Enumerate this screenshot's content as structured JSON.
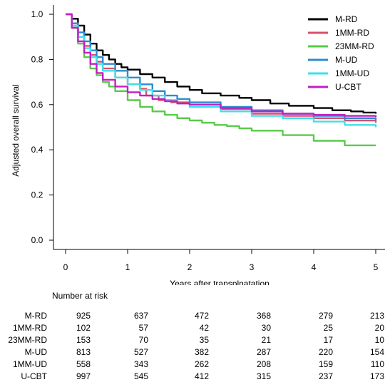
{
  "chart_data": {
    "type": "line",
    "step": true,
    "xlabel": "Years after transplnatation",
    "ylabel": "Adjusted overall survival",
    "xlim": [
      0,
      5
    ],
    "ylim": [
      0,
      1
    ],
    "xticks": [
      "0",
      "1",
      "2",
      "3",
      "4",
      "5"
    ],
    "yticks": [
      "0.0",
      "0.2",
      "0.4",
      "0.6",
      "0.8",
      "1.0"
    ],
    "legend_position": "top-right",
    "grid": false,
    "series": [
      {
        "name": "M-RD",
        "color": "#000000",
        "x": [
          0,
          0.1,
          0.2,
          0.3,
          0.4,
          0.5,
          0.6,
          0.7,
          0.8,
          0.9,
          1.0,
          1.2,
          1.4,
          1.6,
          1.8,
          2.0,
          2.2,
          2.5,
          2.8,
          3.0,
          3.3,
          3.6,
          4.0,
          4.3,
          4.6,
          4.8,
          5.0
        ],
        "y": [
          1.0,
          0.98,
          0.95,
          0.91,
          0.87,
          0.84,
          0.82,
          0.8,
          0.78,
          0.765,
          0.755,
          0.735,
          0.72,
          0.7,
          0.68,
          0.665,
          0.65,
          0.64,
          0.63,
          0.62,
          0.605,
          0.595,
          0.585,
          0.575,
          0.57,
          0.565,
          0.56
        ]
      },
      {
        "name": "1MM-RD",
        "color": "#d94f6b",
        "x": [
          0,
          0.1,
          0.2,
          0.3,
          0.4,
          0.5,
          0.6,
          0.8,
          1.0,
          1.2,
          1.3,
          1.5,
          1.7,
          2.0,
          2.5,
          3.0,
          3.5,
          4.0,
          4.5,
          5.0
        ],
        "y": [
          1.0,
          0.95,
          0.9,
          0.86,
          0.82,
          0.79,
          0.76,
          0.72,
          0.69,
          0.67,
          0.64,
          0.62,
          0.61,
          0.6,
          0.58,
          0.56,
          0.55,
          0.54,
          0.53,
          0.52
        ]
      },
      {
        "name": "23MM-RD",
        "color": "#5ac94a",
        "x": [
          0,
          0.1,
          0.2,
          0.3,
          0.4,
          0.5,
          0.6,
          0.7,
          0.8,
          1.0,
          1.2,
          1.4,
          1.6,
          1.8,
          2.0,
          2.2,
          2.4,
          2.6,
          2.8,
          3.0,
          3.5,
          4.0,
          4.5,
          5.0
        ],
        "y": [
          1.0,
          0.94,
          0.87,
          0.81,
          0.76,
          0.73,
          0.7,
          0.68,
          0.66,
          0.62,
          0.59,
          0.57,
          0.555,
          0.54,
          0.53,
          0.52,
          0.51,
          0.505,
          0.495,
          0.485,
          0.465,
          0.44,
          0.42,
          0.42
        ]
      },
      {
        "name": "M-UD",
        "color": "#2e8bd0",
        "x": [
          0,
          0.1,
          0.2,
          0.3,
          0.4,
          0.5,
          0.6,
          0.8,
          1.0,
          1.2,
          1.4,
          1.6,
          1.8,
          2.0,
          2.5,
          3.0,
          3.5,
          4.0,
          4.5,
          5.0
        ],
        "y": [
          1.0,
          0.96,
          0.92,
          0.88,
          0.84,
          0.81,
          0.78,
          0.75,
          0.72,
          0.69,
          0.66,
          0.64,
          0.625,
          0.61,
          0.59,
          0.575,
          0.56,
          0.55,
          0.54,
          0.53
        ]
      },
      {
        "name": "1MM-UD",
        "color": "#3de0ea",
        "x": [
          0,
          0.1,
          0.2,
          0.3,
          0.4,
          0.5,
          0.6,
          0.8,
          1.0,
          1.2,
          1.4,
          1.6,
          1.8,
          2.0,
          2.5,
          3.0,
          3.5,
          4.0,
          4.5,
          5.0
        ],
        "y": [
          1.0,
          0.95,
          0.9,
          0.85,
          0.81,
          0.78,
          0.75,
          0.72,
          0.69,
          0.665,
          0.64,
          0.62,
          0.605,
          0.59,
          0.57,
          0.55,
          0.54,
          0.525,
          0.51,
          0.5
        ]
      },
      {
        "name": "U-CBT",
        "color": "#c21fc4",
        "x": [
          0,
          0.1,
          0.2,
          0.3,
          0.4,
          0.5,
          0.6,
          0.8,
          1.0,
          1.2,
          1.4,
          1.6,
          1.8,
          2.0,
          2.5,
          3.0,
          3.5,
          4.0,
          4.5,
          5.0
        ],
        "y": [
          1.0,
          0.94,
          0.88,
          0.83,
          0.78,
          0.74,
          0.71,
          0.68,
          0.655,
          0.64,
          0.625,
          0.615,
          0.605,
          0.6,
          0.585,
          0.57,
          0.56,
          0.555,
          0.55,
          0.545
        ]
      }
    ]
  },
  "risk_table": {
    "title": "Number at risk",
    "rows": [
      {
        "label": "M-RD",
        "values": [
          "925",
          "637",
          "472",
          "368",
          "279",
          "213"
        ]
      },
      {
        "label": "1MM-RD",
        "values": [
          "102",
          "57",
          "42",
          "30",
          "25",
          "20"
        ]
      },
      {
        "label": "23MM-RD",
        "values": [
          "153",
          "70",
          "35",
          "21",
          "17",
          "10"
        ]
      },
      {
        "label": "M-UD",
        "values": [
          "813",
          "527",
          "382",
          "287",
          "220",
          "154"
        ]
      },
      {
        "label": "1MM-UD",
        "values": [
          "558",
          "343",
          "262",
          "208",
          "159",
          "110"
        ]
      },
      {
        "label": "U-CBT",
        "values": [
          "997",
          "545",
          "412",
          "315",
          "237",
          "173"
        ]
      }
    ]
  }
}
